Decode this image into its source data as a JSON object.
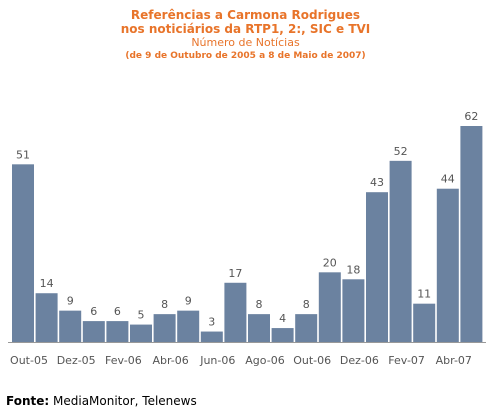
{
  "chart_data": {
    "type": "bar",
    "title_lines": [
      "Referências a Carmona Rodrigues",
      "nos noticiários da RTP1, 2:, SIC e TVI"
    ],
    "subtitle": "Número de Notícias",
    "period": "(de 9 de Outubro de 2005 a 8 de Maio de 2007)",
    "x_tick_labels": [
      "Out-05",
      "Dez-05",
      "Fev-06",
      "Abr-06",
      "Jun-06",
      "Ago-06",
      "Out-06",
      "Dez-06",
      "Fev-07",
      "Abr-07"
    ],
    "values": [
      51,
      14,
      9,
      6,
      6,
      5,
      8,
      9,
      3,
      17,
      8,
      4,
      8,
      20,
      18,
      43,
      52,
      11,
      44,
      62
    ],
    "bar_color": "#6b82a0",
    "ylim": [
      0,
      62
    ]
  },
  "source": {
    "label": "Fonte:",
    "text": "MediaMonitor, Telenews"
  }
}
